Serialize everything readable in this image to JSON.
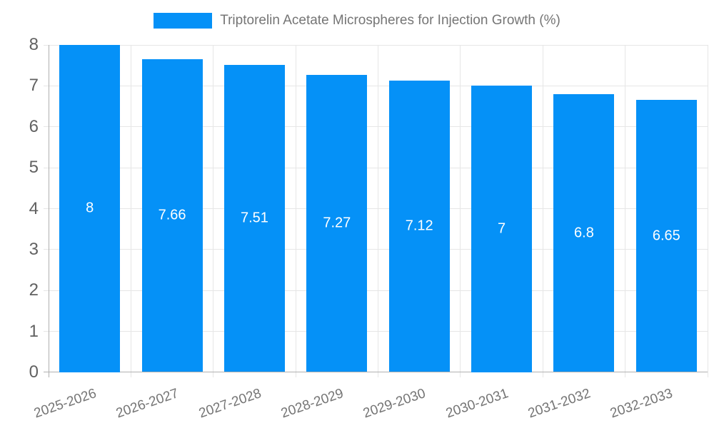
{
  "legend": {
    "label": "Triptorelin Acetate Microspheres for Injection Growth (%)"
  },
  "chart_data": {
    "type": "bar",
    "title": "Triptorelin Acetate Microspheres for Injection Growth (%)",
    "categories": [
      "2025-2026",
      "2026-2027",
      "2027-2028",
      "2028-2029",
      "2029-2030",
      "2030-2031",
      "2031-2032",
      "2032-2033"
    ],
    "values": [
      8,
      7.66,
      7.51,
      7.27,
      7.12,
      7,
      6.8,
      6.65
    ],
    "value_labels": [
      "8",
      "7.66",
      "7.51",
      "7.27",
      "7.12",
      "7",
      "6.8",
      "6.65"
    ],
    "xlabel": "",
    "ylabel": "",
    "ylim": [
      0,
      8
    ],
    "yticks": [
      "0",
      "1",
      "2",
      "3",
      "4",
      "5",
      "6",
      "7",
      "8"
    ],
    "grid": true,
    "legend_position": "top",
    "colors": {
      "bar": "#0591f7",
      "grid": "#e6e6e6",
      "axis": "#b0b0b0",
      "x_tick_label": "#757575",
      "y_tick_label": "#616161",
      "value_label": "#ffffff",
      "background": "#ffffff"
    }
  }
}
